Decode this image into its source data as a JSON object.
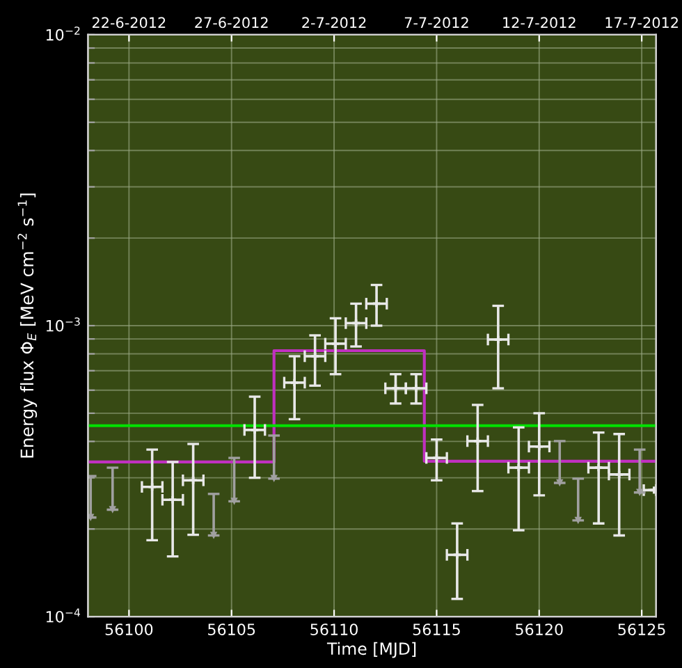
{
  "chart_data": {
    "type": "scatter",
    "xlabel": "Time [MJD]",
    "ylabel": "Energy flux Φ$_{E}$ [MeV cm$^{−2}$ s$^{−1}$]",
    "xlim": [
      56098,
      56125.7
    ],
    "xticks": [
      56100,
      56105,
      56110,
      56115,
      56120,
      56125
    ],
    "x2lim": [
      "2012-06-20",
      "2012-07-17T16:48"
    ],
    "x2ticks": [
      {
        "value": "2012-06-22",
        "label": "22-6-2012"
      },
      {
        "value": "2012-06-27",
        "label": "27-6-2012"
      },
      {
        "value": "2012-07-02",
        "label": "2-7-2012"
      },
      {
        "value": "2012-07-07",
        "label": "7-7-2012"
      },
      {
        "value": "2012-07-12",
        "label": "12-7-2012"
      },
      {
        "value": "2012-07-17",
        "label": "17-7-2012"
      }
    ],
    "log": "y",
    "ylim": [
      0.0001,
      0.01
    ],
    "yticks": [
      {
        "value": 0.0001,
        "label": "10$^{−4}$"
      },
      {
        "value": 0.0002,
        "label": null
      },
      {
        "value": 0.0003,
        "label": null
      },
      {
        "value": 0.0004,
        "label": null
      },
      {
        "value": 0.0005,
        "label": null
      },
      {
        "value": 0.0006,
        "label": null
      },
      {
        "value": 0.0007,
        "label": null
      },
      {
        "value": 0.0008,
        "label": null
      },
      {
        "value": 0.0009,
        "label": null
      },
      {
        "value": 0.001,
        "label": "10$^{−3}$"
      },
      {
        "value": 0.002,
        "label": null
      },
      {
        "value": 0.003,
        "label": null
      },
      {
        "value": 0.004,
        "label": null
      },
      {
        "value": 0.005,
        "label": null
      },
      {
        "value": 0.006,
        "label": null
      },
      {
        "value": 0.007,
        "label": null
      },
      {
        "value": 0.008,
        "label": null
      },
      {
        "value": 0.009,
        "label": null
      },
      {
        "value": 0.01,
        "label": "10$^{−2}$"
      }
    ],
    "grid": true,
    "series": [
      {
        "color": "#e8e8e8",
        "marker": "cross",
        "x": [
          56101.13,
          56102.13,
          56103.13,
          56106.13,
          56108.07,
          56109.07,
          56110.07,
          56111.07,
          56112.07,
          56113.0,
          56114.0,
          56115.0,
          56116.0,
          56117.0,
          56118.0,
          56119.0,
          56120.0,
          56122.9,
          56123.9,
          56125.6
        ],
        "values": [
          0.000279,
          0.000252,
          0.000294,
          0.000438,
          0.000637,
          0.000785,
          0.000867,
          0.00102,
          0.00119,
          0.000609,
          0.000609,
          0.000351,
          0.000163,
          0.000401,
          0.000896,
          0.000325,
          0.000384,
          0.000325,
          0.000308,
          0.000272
        ],
        "errors": [
          [
            0.000183,
            0.000375
          ],
          [
            0.000161,
            0.00034
          ],
          [
            0.000191,
            0.000392
          ],
          [
            0.0003,
            0.00057
          ],
          [
            0.000477,
            0.000785
          ],
          [
            0.000622,
            0.000926
          ],
          [
            0.000681,
            0.00106
          ],
          [
            0.000848,
            0.00119
          ],
          [
            0.001,
            0.00138
          ],
          [
            0.00054,
            0.000681
          ],
          [
            0.00054,
            0.000681
          ],
          [
            0.000294,
            0.000406
          ],
          [
            0.000115,
            0.000209
          ],
          [
            0.00027,
            0.000534
          ],
          [
            0.000609,
            0.00117
          ],
          [
            0.000198,
            0.000447
          ],
          [
            0.000261,
            0.0005
          ],
          [
            0.000209,
            0.000429
          ],
          [
            0.00019,
            0.000424
          ],
          null
        ],
        "xerrors": [
          0.5,
          0.5,
          0.5,
          0.5,
          0.5,
          0.5,
          0.5,
          0.5,
          0.5,
          0.5,
          0.5,
          0.5,
          0.5,
          0.5,
          0.5,
          0.5,
          0.5,
          0.5,
          0.5,
          [
            56125.1,
            56125.7
          ]
        ]
      },
      {
        "color": "#a0a0a0",
        "marker": "triangle",
        "x": [
          56098.13,
          56099.2,
          56104.13,
          56105.13,
          56107.07,
          56121.0,
          56121.9,
          56124.9
        ],
        "values": [
          0.000219,
          0.000233,
          0.00019,
          0.000249,
          0.000298,
          0.000288,
          0.000214,
          0.000267
        ],
        "errors": [
          [
            0.000219,
            0.000304
          ],
          [
            0.000233,
            0.000325
          ],
          [
            0.00019,
            0.000264
          ],
          [
            0.000249,
            0.000351
          ],
          [
            0.000298,
            0.000419
          ],
          [
            0.000288,
            0.000401
          ],
          [
            0.000214,
            0.000298
          ],
          [
            0.000267,
            0.000375
          ]
        ]
      },
      {
        "type": "step",
        "color": "#c030c0",
        "x": [
          56098,
          56107.07,
          56114.4,
          56125.7
        ],
        "values": [
          0.00034,
          0.00082,
          0.000342,
          0.000342
        ]
      }
    ],
    "ref_lines": [
      {
        "axis": "y",
        "value": 0.000453,
        "color": "#00e000"
      }
    ]
  }
}
